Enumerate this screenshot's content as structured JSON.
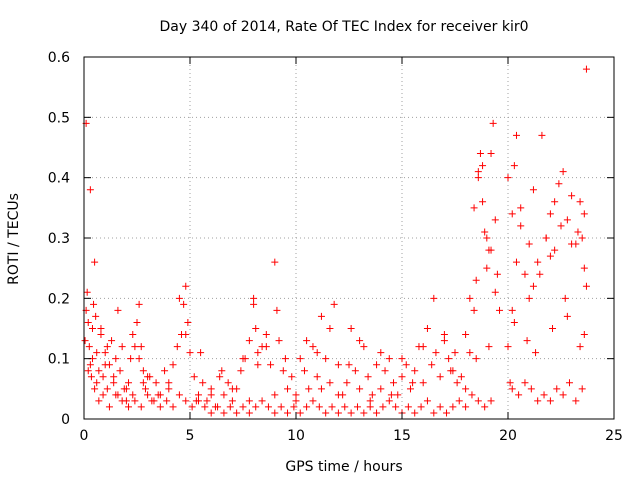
{
  "chart_data": {
    "type": "scatter",
    "title": "Day 340 of 2014, Rate Of TEC Index for receiver kir0",
    "xlabel": "GPS time / hours",
    "ylabel": "ROTI / TECUs",
    "xlim": [
      0,
      25
    ],
    "ylim": [
      0,
      0.6
    ],
    "x_ticks": [
      "0",
      "5",
      "10",
      "15",
      "20",
      "25"
    ],
    "y_ticks": [
      "0",
      "0.1",
      "0.2",
      "0.3",
      "0.4",
      "0.5",
      "0.6"
    ],
    "grid": true,
    "marker": "+",
    "series_color": "#ff0000",
    "series": [
      {
        "name": "ROTI",
        "x": [
          0.05,
          0.1,
          0.15,
          0.2,
          0.25,
          0.3,
          0.35,
          0.4,
          0.45,
          0.5,
          0.55,
          0.6,
          0.7,
          0.8,
          0.9,
          1.0,
          1.1,
          1.2,
          1.3,
          1.4,
          1.5,
          1.6,
          1.7,
          1.8,
          1.9,
          2.0,
          2.1,
          2.2,
          2.3,
          2.4,
          2.5,
          2.6,
          2.7,
          2.8,
          2.9,
          3.0,
          3.2,
          3.4,
          3.6,
          3.8,
          4.0,
          4.2,
          4.4,
          4.6,
          4.7,
          4.8,
          4.9,
          5.0,
          5.2,
          5.4,
          5.6,
          5.8,
          6.0,
          6.2,
          6.4,
          6.6,
          6.8,
          7.0,
          7.2,
          7.4,
          7.6,
          7.8,
          8.0,
          8.1,
          8.2,
          8.4,
          8.6,
          8.8,
          9.0,
          9.2,
          9.4,
          9.6,
          9.8,
          10.0,
          10.2,
          10.4,
          10.6,
          10.8,
          11.0,
          11.2,
          11.4,
          11.6,
          11.8,
          12.0,
          12.2,
          12.4,
          12.6,
          12.8,
          13.0,
          13.2,
          13.4,
          13.6,
          13.8,
          14.0,
          14.2,
          14.4,
          14.6,
          14.8,
          15.0,
          15.2,
          15.4,
          15.6,
          15.8,
          16.0,
          16.2,
          16.4,
          16.6,
          16.8,
          17.0,
          17.2,
          17.4,
          17.6,
          17.8,
          18.0,
          18.2,
          18.4,
          18.5,
          18.6,
          18.7,
          18.8,
          18.9,
          19.0,
          19.1,
          19.2,
          19.3,
          19.4,
          19.5,
          19.6,
          20.0,
          20.1,
          20.2,
          20.3,
          20.4,
          20.6,
          20.8,
          21.0,
          21.2,
          21.4,
          21.6,
          21.8,
          22.0,
          22.2,
          22.4,
          22.6,
          22.8,
          23.0,
          23.2,
          23.4,
          23.5,
          23.6,
          23.7,
          0.1,
          0.3,
          0.5,
          0.7,
          0.9,
          1.2,
          1.5,
          1.8,
          2.1,
          2.4,
          2.7,
          3.0,
          3.3,
          3.6,
          3.9,
          4.2,
          4.5,
          4.8,
          5.1,
          5.4,
          5.7,
          6.0,
          6.3,
          6.6,
          6.9,
          7.2,
          7.5,
          7.8,
          8.1,
          8.4,
          8.7,
          9.0,
          9.3,
          9.6,
          9.9,
          10.2,
          10.5,
          10.8,
          11.1,
          11.4,
          11.7,
          12.0,
          12.3,
          12.6,
          12.9,
          13.2,
          13.5,
          13.8,
          14.1,
          14.4,
          14.7,
          15.0,
          15.3,
          15.6,
          15.9,
          16.2,
          16.5,
          16.8,
          17.1,
          17.4,
          17.7,
          18.0,
          18.3,
          18.6,
          18.9,
          19.2,
          20.2,
          20.5,
          20.8,
          21.1,
          21.4,
          21.7,
          22.0,
          22.3,
          22.6,
          22.9,
          23.2,
          23.5,
          0.4,
          0.8,
          1.1,
          1.6,
          2.3,
          2.6,
          3.1,
          4.5,
          4.8,
          5.5,
          6.5,
          7.5,
          8.0,
          8.2,
          8.6,
          9.1,
          9.5,
          10.5,
          11.0,
          11.6,
          12.5,
          13.0,
          14.0,
          15.0,
          16.0,
          16.5,
          17.0,
          17.5,
          18.2,
          18.4,
          18.6,
          18.8,
          19.0,
          19.2,
          19.4,
          20.0,
          20.2,
          20.4,
          20.6,
          21.0,
          21.2,
          21.5,
          21.8,
          22.0,
          22.2,
          22.5,
          22.7,
          23.0,
          23.3,
          23.6,
          23.7,
          0.2,
          0.6,
          1.0,
          1.4,
          2.0,
          2.8,
          3.5,
          4.0,
          5.3,
          6.0,
          7.0,
          7.8,
          9.0,
          10.0,
          11.2,
          12.0,
          13.5,
          14.5,
          15.5,
          17.3,
          18.0,
          18.5,
          19.1,
          20.3,
          20.9,
          21.3,
          22.1,
          22.8,
          23.4,
          23.6
        ],
        "y": [
          0.13,
          0.18,
          0.21,
          0.16,
          0.12,
          0.09,
          0.07,
          0.15,
          0.19,
          0.26,
          0.17,
          0.11,
          0.08,
          0.14,
          0.07,
          0.11,
          0.05,
          0.09,
          0.13,
          0.06,
          0.1,
          0.04,
          0.08,
          0.12,
          0.05,
          0.03,
          0.06,
          0.1,
          0.04,
          0.12,
          0.16,
          0.19,
          0.12,
          0.08,
          0.05,
          0.07,
          0.03,
          0.06,
          0.04,
          0.08,
          0.05,
          0.09,
          0.12,
          0.14,
          0.19,
          0.22,
          0.16,
          0.11,
          0.07,
          0.04,
          0.06,
          0.03,
          0.05,
          0.02,
          0.07,
          0.04,
          0.06,
          0.03,
          0.05,
          0.08,
          0.1,
          0.13,
          0.19,
          0.15,
          0.11,
          0.12,
          0.14,
          0.09,
          0.26,
          0.13,
          0.08,
          0.05,
          0.07,
          0.04,
          0.1,
          0.08,
          0.05,
          0.12,
          0.07,
          0.17,
          0.1,
          0.06,
          0.19,
          0.09,
          0.04,
          0.06,
          0.15,
          0.08,
          0.05,
          0.12,
          0.07,
          0.04,
          0.09,
          0.05,
          0.08,
          0.1,
          0.06,
          0.04,
          0.07,
          0.09,
          0.05,
          0.08,
          0.12,
          0.06,
          0.15,
          0.09,
          0.11,
          0.07,
          0.13,
          0.1,
          0.08,
          0.06,
          0.07,
          0.05,
          0.11,
          0.18,
          0.23,
          0.41,
          0.44,
          0.36,
          0.31,
          0.25,
          0.28,
          0.44,
          0.49,
          0.33,
          0.24,
          0.18,
          0.12,
          0.06,
          0.18,
          0.42,
          0.47,
          0.35,
          0.24,
          0.29,
          0.22,
          0.26,
          0.47,
          0.3,
          0.34,
          0.28,
          0.39,
          0.41,
          0.33,
          0.37,
          0.29,
          0.36,
          0.3,
          0.34,
          0.58,
          0.49,
          0.38,
          0.05,
          0.03,
          0.04,
          0.02,
          0.04,
          0.03,
          0.02,
          0.03,
          0.02,
          0.04,
          0.03,
          0.02,
          0.03,
          0.02,
          0.04,
          0.03,
          0.02,
          0.03,
          0.02,
          0.01,
          0.02,
          0.01,
          0.02,
          0.01,
          0.02,
          0.01,
          0.02,
          0.03,
          0.02,
          0.01,
          0.02,
          0.01,
          0.02,
          0.01,
          0.02,
          0.03,
          0.02,
          0.01,
          0.02,
          0.01,
          0.02,
          0.01,
          0.02,
          0.01,
          0.02,
          0.01,
          0.02,
          0.03,
          0.02,
          0.01,
          0.02,
          0.01,
          0.02,
          0.03,
          0.01,
          0.02,
          0.01,
          0.02,
          0.03,
          0.02,
          0.04,
          0.03,
          0.02,
          0.03,
          0.05,
          0.04,
          0.06,
          0.05,
          0.03,
          0.04,
          0.03,
          0.05,
          0.04,
          0.06,
          0.03,
          0.05,
          0.1,
          0.15,
          0.12,
          0.18,
          0.14,
          0.1,
          0.07,
          0.2,
          0.14,
          0.11,
          0.08,
          0.1,
          0.2,
          0.09,
          0.12,
          0.18,
          0.1,
          0.13,
          0.11,
          0.15,
          0.09,
          0.13,
          0.11,
          0.1,
          0.12,
          0.2,
          0.14,
          0.11,
          0.2,
          0.35,
          0.4,
          0.42,
          0.3,
          0.28,
          0.21,
          0.4,
          0.34,
          0.26,
          0.32,
          0.2,
          0.38,
          0.24,
          0.3,
          0.27,
          0.36,
          0.32,
          0.2,
          0.29,
          0.31,
          0.25,
          0.22,
          0.08,
          0.06,
          0.09,
          0.07,
          0.05,
          0.06,
          0.04,
          0.06,
          0.03,
          0.04,
          0.05,
          0.03,
          0.04,
          0.03,
          0.05,
          0.04,
          0.03,
          0.04,
          0.06,
          0.08,
          0.14,
          0.1,
          0.12,
          0.16,
          0.13,
          0.11,
          0.15,
          0.17,
          0.12,
          0.14
        ]
      }
    ]
  }
}
